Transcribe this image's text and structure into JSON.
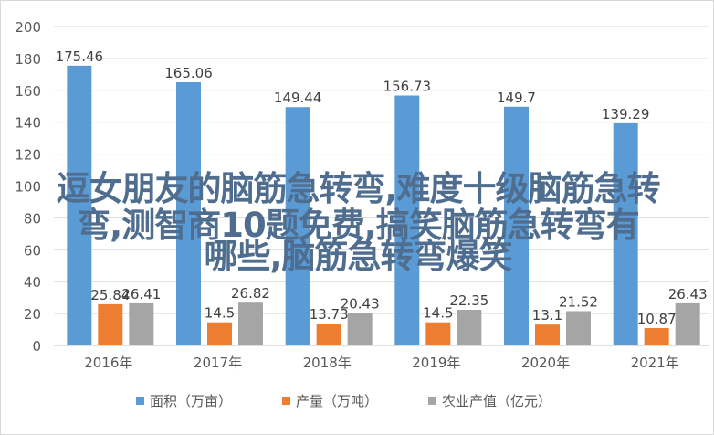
{
  "chart_data": {
    "type": "bar",
    "title": "",
    "xlabel": "",
    "ylabel": "",
    "ylim": [
      0,
      200
    ],
    "yticks": [
      0,
      20,
      40,
      60,
      80,
      100,
      120,
      140,
      160,
      180,
      200
    ],
    "grid": true,
    "legend_position": "bottom",
    "categories": [
      "2016年",
      "2017年",
      "2018年",
      "2019年",
      "2020年",
      "2021年"
    ],
    "series": [
      {
        "name": "面积（万亩）",
        "color": "#5b9bd5",
        "values": [
          175.46,
          165.06,
          149.44,
          156.73,
          149.7,
          139.29
        ],
        "labels": [
          "175.46",
          "165.06",
          "149.44",
          "156.73",
          "149.7",
          "139.29"
        ]
      },
      {
        "name": "产量（万吨）",
        "color": "#ed7d31",
        "values": [
          25.84,
          14.5,
          13.73,
          14.5,
          13.1,
          10.87
        ],
        "labels": [
          "25.84",
          "14.5",
          "13.73",
          "14.5",
          "13.1",
          "10.87"
        ]
      },
      {
        "name": "农业产值（亿元）",
        "color": "#a5a5a5",
        "values": [
          26.41,
          26.82,
          20.43,
          22.35,
          21.52,
          26.43
        ],
        "labels": [
          "26.41",
          "26.82",
          "20.43",
          "22.35",
          "21.52",
          "26.43"
        ]
      }
    ]
  },
  "overlay": {
    "lines": [
      "逗女朋友的脑筋急转弯,难度十级脑筋急转",
      "弯,测智商10题免费,搞笑脑筋急转弯有",
      "哪些,脑筋急转弯爆笑"
    ]
  }
}
